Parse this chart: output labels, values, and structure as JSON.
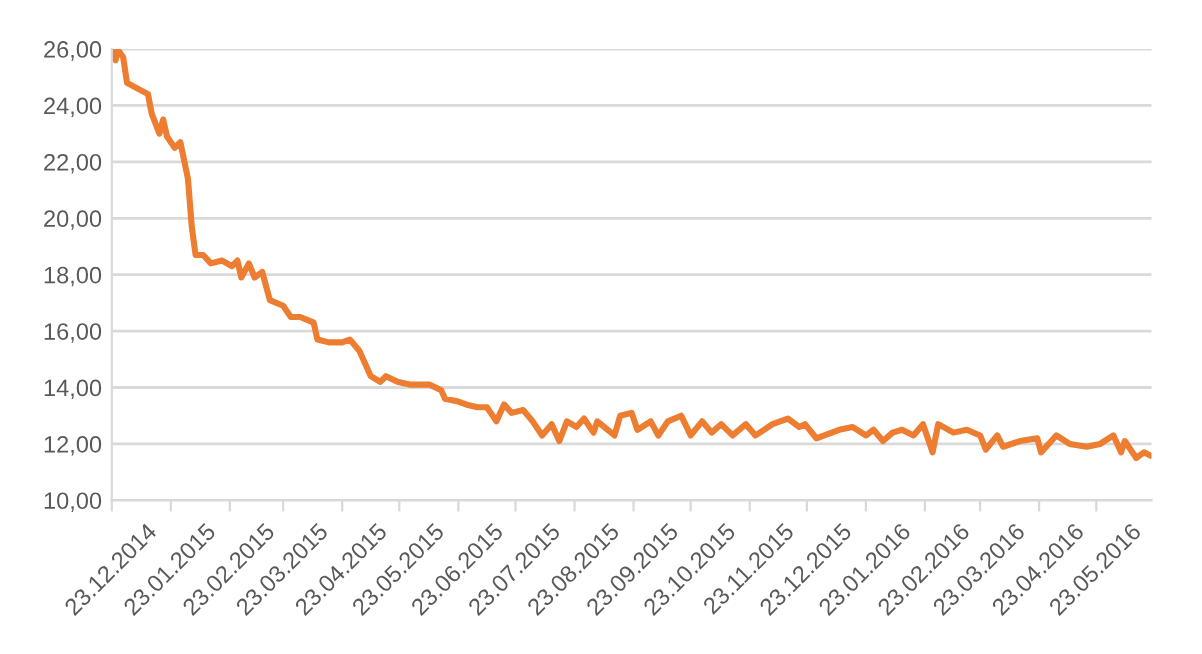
{
  "chart_data": {
    "type": "line",
    "x": [
      "2014-12-23",
      "2014-12-25",
      "2014-12-26",
      "2014-12-29",
      "2014-12-31",
      "2015-01-11",
      "2015-01-13",
      "2015-01-17",
      "2015-01-19",
      "2015-01-21",
      "2015-01-25",
      "2015-01-28",
      "2015-02-01",
      "2015-02-03",
      "2015-02-05",
      "2015-02-09",
      "2015-02-13",
      "2015-02-19",
      "2015-02-24",
      "2015-02-27",
      "2015-03-01",
      "2015-03-05",
      "2015-03-08",
      "2015-03-12",
      "2015-03-16",
      "2015-03-23",
      "2015-03-27",
      "2015-04-01",
      "2015-04-08",
      "2015-04-10",
      "2015-04-16",
      "2015-04-23",
      "2015-04-27",
      "2015-05-02",
      "2015-05-08",
      "2015-05-13",
      "2015-05-16",
      "2015-05-22",
      "2015-05-29",
      "2015-06-08",
      "2015-06-14",
      "2015-06-16",
      "2015-06-23",
      "2015-06-27",
      "2015-07-03",
      "2015-07-08",
      "2015-07-13",
      "2015-07-17",
      "2015-07-21",
      "2015-07-27",
      "2015-08-01",
      "2015-08-06",
      "2015-08-11",
      "2015-08-15",
      "2015-08-19",
      "2015-08-24",
      "2015-08-28",
      "2015-09-02",
      "2015-09-04",
      "2015-09-13",
      "2015-09-16",
      "2015-09-22",
      "2015-09-25",
      "2015-10-02",
      "2015-10-06",
      "2015-10-11",
      "2015-10-18",
      "2015-10-23",
      "2015-10-29",
      "2015-11-03",
      "2015-11-08",
      "2015-11-14",
      "2015-11-21",
      "2015-11-26",
      "2015-12-05",
      "2015-12-13",
      "2015-12-19",
      "2015-12-22",
      "2015-12-28",
      "2016-01-09",
      "2016-01-16",
      "2016-01-23",
      "2016-01-27",
      "2016-02-01",
      "2016-02-06",
      "2016-02-11",
      "2016-02-17",
      "2016-02-22",
      "2016-02-27",
      "2016-03-01",
      "2016-03-09",
      "2016-03-16",
      "2016-03-23",
      "2016-03-26",
      "2016-04-01",
      "2016-04-04",
      "2016-04-13",
      "2016-04-22",
      "2016-04-24",
      "2016-05-02",
      "2016-05-09",
      "2016-05-18",
      "2016-05-25",
      "2016-06-01",
      "2016-06-05",
      "2016-06-07",
      "2016-06-13",
      "2016-06-17",
      "2016-06-20"
    ],
    "series": [
      {
        "color": "#ed7d31",
        "values": [
          26.0,
          25.6,
          26.0,
          25.7,
          24.8,
          24.4,
          23.7,
          23.0,
          23.5,
          22.9,
          22.5,
          22.7,
          21.4,
          19.7,
          18.7,
          18.7,
          18.4,
          18.5,
          18.3,
          18.5,
          17.9,
          18.4,
          17.9,
          18.1,
          17.1,
          16.9,
          16.5,
          16.5,
          16.3,
          15.7,
          15.6,
          15.6,
          15.7,
          15.3,
          14.4,
          14.2,
          14.4,
          14.2,
          14.1,
          14.1,
          13.9,
          13.6,
          13.5,
          13.4,
          13.3,
          13.3,
          12.8,
          13.4,
          13.1,
          13.2,
          12.8,
          12.3,
          12.7,
          12.1,
          12.8,
          12.6,
          12.9,
          12.4,
          12.8,
          12.3,
          13.0,
          13.1,
          12.5,
          12.8,
          12.3,
          12.8,
          13.0,
          12.3,
          12.8,
          12.4,
          12.7,
          12.3,
          12.7,
          12.3,
          12.7,
          12.9,
          12.6,
          12.7,
          12.2,
          12.5,
          12.6,
          12.3,
          12.5,
          12.1,
          12.4,
          12.5,
          12.3,
          12.7,
          11.7,
          12.7,
          12.4,
          12.5,
          12.3,
          11.8,
          12.3,
          11.9,
          12.1,
          12.2,
          11.7,
          12.3,
          12.0,
          11.9,
          12.0,
          12.3,
          11.7,
          12.1,
          11.5,
          11.7,
          11.6
        ]
      }
    ],
    "xlim": [
      "2014-12-23",
      "2016-06-21"
    ],
    "xticks": [
      {
        "value": "2014-12-23",
        "label": "23.12.2014"
      },
      {
        "value": "2015-01-23",
        "label": "23.01.2015"
      },
      {
        "value": "2015-02-23",
        "label": "23.02.2015"
      },
      {
        "value": "2015-03-23",
        "label": "23.03.2015"
      },
      {
        "value": "2015-04-23",
        "label": "23.04.2015"
      },
      {
        "value": "2015-05-23",
        "label": "23.05.2015"
      },
      {
        "value": "2015-06-23",
        "label": "23.06.2015"
      },
      {
        "value": "2015-07-23",
        "label": "23.07.2015"
      },
      {
        "value": "2015-08-23",
        "label": "23.08.2015"
      },
      {
        "value": "2015-09-23",
        "label": "23.09.2015"
      },
      {
        "value": "2015-10-23",
        "label": "23.10.2015"
      },
      {
        "value": "2015-11-23",
        "label": "23.11.2015"
      },
      {
        "value": "2015-12-23",
        "label": "23.12.2015"
      },
      {
        "value": "2016-01-23",
        "label": "23.01.2016"
      },
      {
        "value": "2016-02-23",
        "label": "23.02.2016"
      },
      {
        "value": "2016-03-23",
        "label": "23.03.2016"
      },
      {
        "value": "2016-04-23",
        "label": "23.04.2016"
      },
      {
        "value": "2016-05-23",
        "label": "23.05.2016"
      }
    ],
    "ylim": [
      10,
      26
    ],
    "yticks": [
      {
        "value": 10,
        "label": "10,00"
      },
      {
        "value": 12,
        "label": "12,00"
      },
      {
        "value": 14,
        "label": "14,00"
      },
      {
        "value": 16,
        "label": "16,00"
      },
      {
        "value": 18,
        "label": "18,00"
      },
      {
        "value": 20,
        "label": "20,00"
      },
      {
        "value": 22,
        "label": "22,00"
      },
      {
        "value": 24,
        "label": "24,00"
      },
      {
        "value": 26,
        "label": "26,00"
      }
    ],
    "grid": "y",
    "line_style": "solid",
    "marker": "none"
  }
}
